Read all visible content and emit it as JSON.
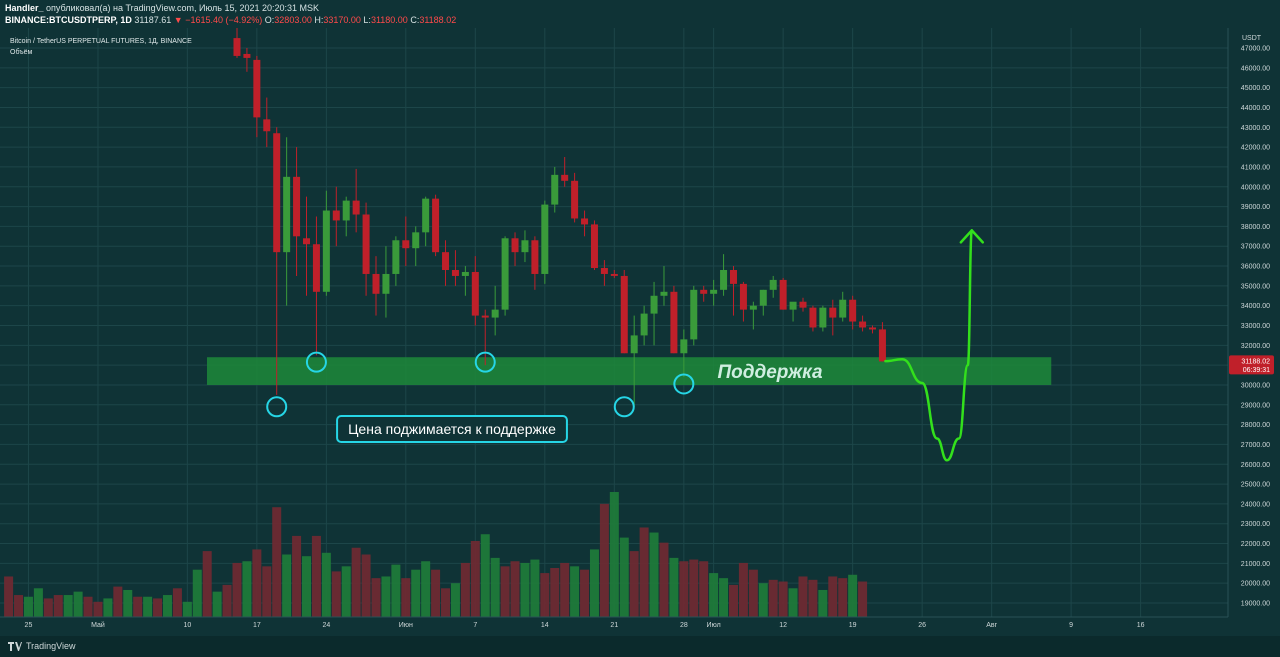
{
  "header": {
    "author": "Handler_",
    "published": " опубликовал(а) на TradingView.com, Июль 15, 2021 20:20:31 MSK",
    "ticker": "BINANCE:BTCUSDTPERP, 1D",
    "price": "31187.61",
    "change": "−1615.40 (−4.92%)",
    "ohlc": {
      "o_label": "O:",
      "o": "32803.00",
      "h_label": "H:",
      "h": "33170.00",
      "l_label": "L:",
      "l": "31180.00",
      "c_label": "C:",
      "c": "31188.02"
    }
  },
  "legend": {
    "series_title": "Bitcoin / TetherUS PERPETUAL FUTURES, 1Д, BINANCE",
    "volume_label": "Объём"
  },
  "footer": {
    "brand": "TradingView",
    "logo_icon": "tradingview-logo-icon"
  },
  "chart_data": {
    "type": "candlestick",
    "currency_label": "USDT",
    "ylim": [
      18500,
      48000
    ],
    "y_ticks": [
      19000,
      20000,
      21000,
      22000,
      23000,
      24000,
      25000,
      26000,
      27000,
      28000,
      29000,
      30000,
      31000,
      32000,
      33000,
      34000,
      35000,
      36000,
      37000,
      38000,
      39000,
      40000,
      41000,
      42000,
      43000,
      44000,
      45000,
      46000,
      47000
    ],
    "x_ticks": [
      {
        "i": -4,
        "label": "25"
      },
      {
        "i": 3,
        "label": "Май"
      },
      {
        "i": 12,
        "label": "10"
      },
      {
        "i": 19,
        "label": "17"
      },
      {
        "i": 26,
        "label": "24"
      },
      {
        "i": 34,
        "label": "Июн"
      },
      {
        "i": 41,
        "label": "7"
      },
      {
        "i": 48,
        "label": "14"
      },
      {
        "i": 55,
        "label": "21"
      },
      {
        "i": 62,
        "label": "28"
      },
      {
        "i": 65,
        "label": "Июл"
      },
      {
        "i": 72,
        "label": "12"
      },
      {
        "i": 79,
        "label": "19"
      },
      {
        "i": 86,
        "label": "26"
      },
      {
        "i": 93,
        "label": "Авг"
      },
      {
        "i": 101,
        "label": "9"
      },
      {
        "i": 108,
        "label": "16"
      }
    ],
    "candles": [
      {
        "i": 17,
        "o": 47500,
        "h": 48500,
        "l": 46500,
        "c": 46600
      },
      {
        "i": 18,
        "o": 46700,
        "h": 47000,
        "l": 45800,
        "c": 46500
      },
      {
        "i": 19,
        "o": 46400,
        "h": 46600,
        "l": 42500,
        "c": 43500
      },
      {
        "i": 20,
        "o": 43400,
        "h": 44500,
        "l": 42000,
        "c": 42800
      },
      {
        "i": 21,
        "o": 42700,
        "h": 43000,
        "l": 29500,
        "c": 36700
      },
      {
        "i": 22,
        "o": 36700,
        "h": 42500,
        "l": 34000,
        "c": 40500
      },
      {
        "i": 23,
        "o": 40500,
        "h": 42000,
        "l": 35500,
        "c": 37500
      },
      {
        "i": 24,
        "o": 37400,
        "h": 39500,
        "l": 34500,
        "c": 37100
      },
      {
        "i": 25,
        "o": 37100,
        "h": 38500,
        "l": 31500,
        "c": 34700
      },
      {
        "i": 26,
        "o": 34700,
        "h": 39800,
        "l": 34500,
        "c": 38800
      },
      {
        "i": 27,
        "o": 38800,
        "h": 40000,
        "l": 37000,
        "c": 38300
      },
      {
        "i": 28,
        "o": 38300,
        "h": 39500,
        "l": 37500,
        "c": 39300
      },
      {
        "i": 29,
        "o": 39300,
        "h": 40900,
        "l": 37700,
        "c": 38600
      },
      {
        "i": 30,
        "o": 38600,
        "h": 39200,
        "l": 34500,
        "c": 35600
      },
      {
        "i": 31,
        "o": 35600,
        "h": 36500,
        "l": 33500,
        "c": 34600
      },
      {
        "i": 32,
        "o": 34600,
        "h": 37000,
        "l": 33400,
        "c": 35600
      },
      {
        "i": 33,
        "o": 35600,
        "h": 37500,
        "l": 35000,
        "c": 37300
      },
      {
        "i": 34,
        "o": 37300,
        "h": 38500,
        "l": 36000,
        "c": 36900
      },
      {
        "i": 35,
        "o": 36900,
        "h": 38000,
        "l": 36000,
        "c": 37700
      },
      {
        "i": 36,
        "o": 37700,
        "h": 39500,
        "l": 37000,
        "c": 39400
      },
      {
        "i": 37,
        "o": 39400,
        "h": 39600,
        "l": 36500,
        "c": 36700
      },
      {
        "i": 38,
        "o": 36700,
        "h": 37300,
        "l": 35000,
        "c": 35800
      },
      {
        "i": 39,
        "o": 35800,
        "h": 36800,
        "l": 35000,
        "c": 35500
      },
      {
        "i": 40,
        "o": 35500,
        "h": 36000,
        "l": 34500,
        "c": 35700
      },
      {
        "i": 41,
        "o": 35700,
        "h": 36500,
        "l": 33000,
        "c": 33500
      },
      {
        "i": 42,
        "o": 33500,
        "h": 33800,
        "l": 31000,
        "c": 33400
      },
      {
        "i": 43,
        "o": 33400,
        "h": 35000,
        "l": 32500,
        "c": 33800
      },
      {
        "i": 44,
        "o": 33800,
        "h": 37500,
        "l": 33500,
        "c": 37400
      },
      {
        "i": 45,
        "o": 37400,
        "h": 37700,
        "l": 36000,
        "c": 36700
      },
      {
        "i": 46,
        "o": 36700,
        "h": 37800,
        "l": 36200,
        "c": 37300
      },
      {
        "i": 47,
        "o": 37300,
        "h": 37500,
        "l": 34800,
        "c": 35600
      },
      {
        "i": 48,
        "o": 35600,
        "h": 39300,
        "l": 35100,
        "c": 39100
      },
      {
        "i": 49,
        "o": 39100,
        "h": 41000,
        "l": 38700,
        "c": 40600
      },
      {
        "i": 50,
        "o": 40600,
        "h": 41500,
        "l": 40000,
        "c": 40300
      },
      {
        "i": 51,
        "o": 40300,
        "h": 40700,
        "l": 38200,
        "c": 38400
      },
      {
        "i": 52,
        "o": 38400,
        "h": 38800,
        "l": 37500,
        "c": 38100
      },
      {
        "i": 53,
        "o": 38100,
        "h": 38300,
        "l": 35800,
        "c": 35900
      },
      {
        "i": 54,
        "o": 35900,
        "h": 36300,
        "l": 35000,
        "c": 35600
      },
      {
        "i": 55,
        "o": 35600,
        "h": 35800,
        "l": 35400,
        "c": 35500
      },
      {
        "i": 56,
        "o": 35500,
        "h": 35800,
        "l": 31600,
        "c": 31600
      },
      {
        "i": 57,
        "o": 31600,
        "h": 33500,
        "l": 28900,
        "c": 32500
      },
      {
        "i": 58,
        "o": 32500,
        "h": 34000,
        "l": 32000,
        "c": 33600
      },
      {
        "i": 59,
        "o": 33600,
        "h": 35200,
        "l": 32000,
        "c": 34500
      },
      {
        "i": 60,
        "o": 34500,
        "h": 36000,
        "l": 34000,
        "c": 34700
      },
      {
        "i": 61,
        "o": 34700,
        "h": 35000,
        "l": 31600,
        "c": 31600
      },
      {
        "i": 62,
        "o": 31600,
        "h": 32800,
        "l": 30400,
        "c": 32300
      },
      {
        "i": 63,
        "o": 32300,
        "h": 35000,
        "l": 32000,
        "c": 34800
      },
      {
        "i": 64,
        "o": 34800,
        "h": 35000,
        "l": 34200,
        "c": 34600
      },
      {
        "i": 65,
        "o": 34600,
        "h": 35300,
        "l": 34000,
        "c": 34800
      },
      {
        "i": 66,
        "o": 34800,
        "h": 36600,
        "l": 34500,
        "c": 35800
      },
      {
        "i": 67,
        "o": 35800,
        "h": 36000,
        "l": 33500,
        "c": 35100
      },
      {
        "i": 68,
        "o": 35100,
        "h": 35200,
        "l": 33200,
        "c": 33800
      },
      {
        "i": 69,
        "o": 33800,
        "h": 34200,
        "l": 32800,
        "c": 34000
      },
      {
        "i": 70,
        "o": 34000,
        "h": 34800,
        "l": 33500,
        "c": 34800
      },
      {
        "i": 71,
        "o": 34800,
        "h": 35500,
        "l": 34400,
        "c": 35300
      },
      {
        "i": 72,
        "o": 35300,
        "h": 35400,
        "l": 33800,
        "c": 33800
      },
      {
        "i": 73,
        "o": 33800,
        "h": 34100,
        "l": 33200,
        "c": 34200
      },
      {
        "i": 74,
        "o": 34200,
        "h": 34400,
        "l": 33700,
        "c": 33900
      },
      {
        "i": 75,
        "o": 33900,
        "h": 34000,
        "l": 32700,
        "c": 32900
      },
      {
        "i": 76,
        "o": 32900,
        "h": 34000,
        "l": 32700,
        "c": 33900
      },
      {
        "i": 77,
        "o": 33900,
        "h": 34300,
        "l": 32500,
        "c": 33400
      },
      {
        "i": 78,
        "o": 33400,
        "h": 34700,
        "l": 33200,
        "c": 34300
      },
      {
        "i": 79,
        "o": 34300,
        "h": 34500,
        "l": 32800,
        "c": 33200
      },
      {
        "i": 80,
        "o": 33200,
        "h": 33500,
        "l": 32700,
        "c": 32900
      },
      {
        "i": 81,
        "o": 32900,
        "h": 33000,
        "l": 32600,
        "c": 32800
      },
      {
        "i": 82,
        "o": 32803,
        "h": 33170,
        "l": 31180,
        "c": 31188.02
      }
    ],
    "volume": [
      {
        "i": -6,
        "v": 2400,
        "up": false
      },
      {
        "i": -5,
        "v": 1300,
        "up": false
      },
      {
        "i": -4,
        "v": 1200,
        "up": true
      },
      {
        "i": -3,
        "v": 1700,
        "up": true
      },
      {
        "i": -2,
        "v": 1100,
        "up": false
      },
      {
        "i": -1,
        "v": 1300,
        "up": false
      },
      {
        "i": 0,
        "v": 1300,
        "up": true
      },
      {
        "i": 1,
        "v": 1500,
        "up": true
      },
      {
        "i": 2,
        "v": 1200,
        "up": false
      },
      {
        "i": 3,
        "v": 900,
        "up": false
      },
      {
        "i": 4,
        "v": 1100,
        "up": true
      },
      {
        "i": 5,
        "v": 1800,
        "up": false
      },
      {
        "i": 6,
        "v": 1600,
        "up": true
      },
      {
        "i": 7,
        "v": 1200,
        "up": false
      },
      {
        "i": 8,
        "v": 1200,
        "up": true
      },
      {
        "i": 9,
        "v": 1100,
        "up": false
      },
      {
        "i": 10,
        "v": 1300,
        "up": true
      },
      {
        "i": 11,
        "v": 1700,
        "up": false
      },
      {
        "i": 12,
        "v": 900,
        "up": true
      },
      {
        "i": 13,
        "v": 2800,
        "up": true
      },
      {
        "i": 14,
        "v": 3900,
        "up": false
      },
      {
        "i": 15,
        "v": 1500,
        "up": true
      },
      {
        "i": 16,
        "v": 1900,
        "up": false
      },
      {
        "i": 17,
        "v": 3200,
        "up": false
      },
      {
        "i": 18,
        "v": 3300,
        "up": true
      },
      {
        "i": 19,
        "v": 4000,
        "up": false
      },
      {
        "i": 20,
        "v": 3000,
        "up": false
      },
      {
        "i": 21,
        "v": 6500,
        "up": false
      },
      {
        "i": 22,
        "v": 3700,
        "up": true
      },
      {
        "i": 23,
        "v": 4800,
        "up": false
      },
      {
        "i": 24,
        "v": 3600,
        "up": true
      },
      {
        "i": 25,
        "v": 4800,
        "up": false
      },
      {
        "i": 26,
        "v": 3800,
        "up": true
      },
      {
        "i": 27,
        "v": 2700,
        "up": false
      },
      {
        "i": 28,
        "v": 3000,
        "up": true
      },
      {
        "i": 29,
        "v": 4100,
        "up": false
      },
      {
        "i": 30,
        "v": 3700,
        "up": false
      },
      {
        "i": 31,
        "v": 2300,
        "up": false
      },
      {
        "i": 32,
        "v": 2400,
        "up": true
      },
      {
        "i": 33,
        "v": 3100,
        "up": true
      },
      {
        "i": 34,
        "v": 2300,
        "up": false
      },
      {
        "i": 35,
        "v": 2800,
        "up": true
      },
      {
        "i": 36,
        "v": 3300,
        "up": true
      },
      {
        "i": 37,
        "v": 2800,
        "up": false
      },
      {
        "i": 38,
        "v": 1700,
        "up": false
      },
      {
        "i": 39,
        "v": 2000,
        "up": true
      },
      {
        "i": 40,
        "v": 3200,
        "up": false
      },
      {
        "i": 41,
        "v": 4500,
        "up": false
      },
      {
        "i": 42,
        "v": 4900,
        "up": true
      },
      {
        "i": 43,
        "v": 3500,
        "up": true
      },
      {
        "i": 44,
        "v": 3000,
        "up": false
      },
      {
        "i": 45,
        "v": 3300,
        "up": false
      },
      {
        "i": 46,
        "v": 3200,
        "up": true
      },
      {
        "i": 47,
        "v": 3400,
        "up": true
      },
      {
        "i": 48,
        "v": 2600,
        "up": false
      },
      {
        "i": 49,
        "v": 2900,
        "up": false
      },
      {
        "i": 50,
        "v": 3200,
        "up": false
      },
      {
        "i": 51,
        "v": 3000,
        "up": true
      },
      {
        "i": 52,
        "v": 2800,
        "up": false
      },
      {
        "i": 53,
        "v": 4000,
        "up": true
      },
      {
        "i": 54,
        "v": 6700,
        "up": false
      },
      {
        "i": 55,
        "v": 7400,
        "up": true
      },
      {
        "i": 56,
        "v": 4700,
        "up": true
      },
      {
        "i": 57,
        "v": 3900,
        "up": false
      },
      {
        "i": 58,
        "v": 5300,
        "up": false
      },
      {
        "i": 59,
        "v": 5000,
        "up": true
      },
      {
        "i": 60,
        "v": 4400,
        "up": false
      },
      {
        "i": 61,
        "v": 3500,
        "up": true
      },
      {
        "i": 62,
        "v": 3300,
        "up": false
      },
      {
        "i": 63,
        "v": 3400,
        "up": false
      },
      {
        "i": 64,
        "v": 3300,
        "up": false
      },
      {
        "i": 65,
        "v": 2600,
        "up": true
      },
      {
        "i": 66,
        "v": 2300,
        "up": true
      },
      {
        "i": 67,
        "v": 1900,
        "up": false
      },
      {
        "i": 68,
        "v": 3200,
        "up": false
      },
      {
        "i": 69,
        "v": 2800,
        "up": false
      },
      {
        "i": 70,
        "v": 2000,
        "up": true
      },
      {
        "i": 71,
        "v": 2200,
        "up": false
      },
      {
        "i": 72,
        "v": 2100,
        "up": false
      },
      {
        "i": 73,
        "v": 1700,
        "up": true
      },
      {
        "i": 74,
        "v": 2400,
        "up": false
      },
      {
        "i": 75,
        "v": 2200,
        "up": false
      },
      {
        "i": 76,
        "v": 1600,
        "up": true
      },
      {
        "i": 77,
        "v": 2400,
        "up": false
      },
      {
        "i": 78,
        "v": 2300,
        "up": false
      },
      {
        "i": 79,
        "v": 2500,
        "up": true
      },
      {
        "i": 80,
        "v": 2100,
        "up": false
      }
    ],
    "volume_max": 7400,
    "current_price_tag": {
      "value": "31188.02",
      "countdown": "06:39:31"
    },
    "support_zone": {
      "from": 30000,
      "to": 31400,
      "i_start": 17,
      "i_end": 99,
      "label": "Поддержка"
    },
    "touch_circles": [
      {
        "i": 21,
        "price": 28900
      },
      {
        "i": 25,
        "price": 31150
      },
      {
        "i": 42,
        "price": 31150
      },
      {
        "i": 56,
        "price": 28900
      },
      {
        "i": 62,
        "price": 30050
      }
    ],
    "annotation": {
      "text": "Цена поджимается к поддержке",
      "i": 37,
      "price": 27800
    },
    "forecast_path": [
      {
        "i": 82.3,
        "p": 31200
      },
      {
        "i": 84,
        "p": 31300
      },
      {
        "i": 86,
        "p": 30100
      },
      {
        "i": 87.5,
        "p": 27300
      },
      {
        "i": 88.5,
        "p": 26200
      },
      {
        "i": 89.7,
        "p": 27300
      },
      {
        "i": 90.6,
        "p": 31000
      },
      {
        "i": 91,
        "p": 37800
      }
    ],
    "colors": {
      "up": "#3a9b3a",
      "down": "#c0202a",
      "support": "#1d8a3a",
      "forecast": "#33e01c",
      "circle": "#26d6e6"
    }
  }
}
